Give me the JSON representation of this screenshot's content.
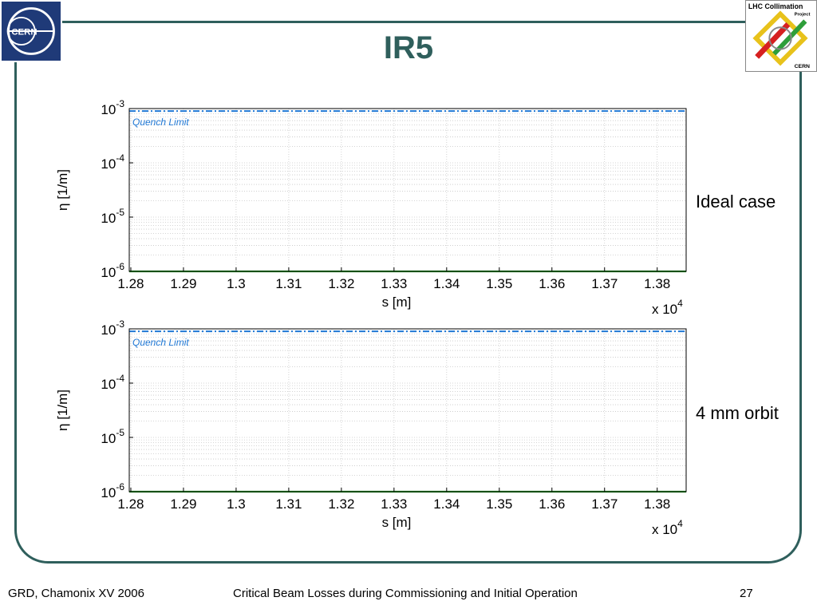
{
  "slide": {
    "title": "IR5",
    "footer_left": "GRD, Chamonix XV 2006",
    "footer_center": "Critical Beam Losses during Commissioning and Initial Operation",
    "footer_page": "27",
    "cern_logo_text": "CERN",
    "collim_logo_text": "LHC Collimation",
    "collim_logo_sub": "Project",
    "collim_logo_cern": "CERN"
  },
  "labels": {
    "top_case": "Ideal case",
    "bottom_case": "4 mm orbit"
  },
  "colors": {
    "frame": "#2f5f5c",
    "quench": "#1f77d4",
    "loss": "#2ca02c",
    "grid": "#c8c8c8"
  },
  "chart_data": [
    {
      "type": "line",
      "xlabel": "s [m]",
      "ylabel": "η [1/m]",
      "x_multiplier_base": "x 10",
      "x_multiplier_exp": "4",
      "xlim": [
        1.2797,
        1.3855
      ],
      "ylim": [
        1e-06,
        0.001
      ],
      "y_scale": "log",
      "x_ticks": [
        "1.28",
        "1.29",
        "1.3",
        "1.31",
        "1.32",
        "1.33",
        "1.34",
        "1.35",
        "1.36",
        "1.37",
        "1.38"
      ],
      "y_ticks": [
        {
          "base": "10",
          "exp": "-3"
        },
        {
          "base": "10",
          "exp": "-4"
        },
        {
          "base": "10",
          "exp": "-5"
        },
        {
          "base": "10",
          "exp": "-6"
        }
      ],
      "grid": true,
      "annotation": "Quench Limit",
      "series": [
        {
          "name": "Quench Limit",
          "style": "dash-dot",
          "x": [
            1.2797,
            1.3855
          ],
          "y": [
            0.0009,
            0.0009
          ]
        },
        {
          "style": "solid",
          "x": [
            1.2797,
            1.3855
          ],
          "y": [
            1e-06,
            1e-06
          ]
        }
      ]
    },
    {
      "type": "line",
      "xlabel": "s [m]",
      "ylabel": "η [1/m]",
      "x_multiplier_base": "x 10",
      "x_multiplier_exp": "4",
      "xlim": [
        1.2797,
        1.3855
      ],
      "ylim": [
        1e-06,
        0.001
      ],
      "y_scale": "log",
      "x_ticks": [
        "1.28",
        "1.29",
        "1.3",
        "1.31",
        "1.32",
        "1.33",
        "1.34",
        "1.35",
        "1.36",
        "1.37",
        "1.38"
      ],
      "y_ticks": [
        {
          "base": "10",
          "exp": "-3"
        },
        {
          "base": "10",
          "exp": "-4"
        },
        {
          "base": "10",
          "exp": "-5"
        },
        {
          "base": "10",
          "exp": "-6"
        }
      ],
      "grid": true,
      "annotation": "Quench Limit",
      "series": [
        {
          "name": "Quench Limit",
          "style": "dash-dot",
          "x": [
            1.2797,
            1.3855
          ],
          "y": [
            0.0009,
            0.0009
          ]
        },
        {
          "style": "solid",
          "x": [
            1.2797,
            1.3855
          ],
          "y": [
            1e-06,
            1e-06
          ]
        }
      ]
    }
  ]
}
